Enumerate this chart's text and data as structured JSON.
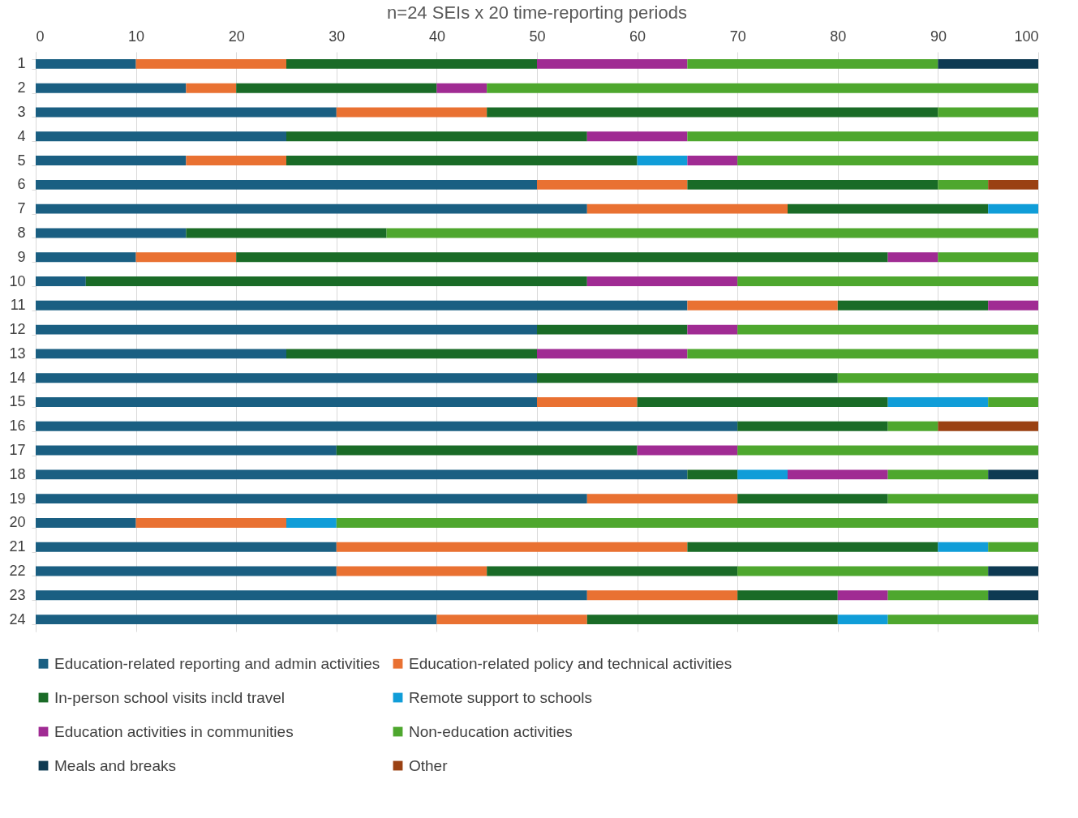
{
  "chart_data": {
    "type": "bar",
    "orientation": "horizontal",
    "stacked": true,
    "title": "n=24 SEIs x 20 time-reporting periods",
    "categories": [
      "1",
      "2",
      "3",
      "4",
      "5",
      "6",
      "7",
      "8",
      "9",
      "10",
      "11",
      "12",
      "13",
      "14",
      "15",
      "16",
      "17",
      "18",
      "19",
      "20",
      "21",
      "22",
      "23",
      "24"
    ],
    "series": [
      {
        "name": "Education-related reporting and admin activities",
        "color": "#1a5f82",
        "values": [
          10,
          15,
          30,
          25,
          15,
          50,
          55,
          15,
          10,
          5,
          65,
          50,
          25,
          50,
          50,
          70,
          30,
          65,
          55,
          10,
          30,
          30,
          55,
          40
        ]
      },
      {
        "name": "Education-related policy and technical activities",
        "color": "#e97132",
        "values": [
          15,
          5,
          15,
          0,
          10,
          15,
          20,
          0,
          10,
          0,
          15,
          0,
          0,
          0,
          10,
          0,
          0,
          0,
          15,
          15,
          35,
          15,
          15,
          15
        ]
      },
      {
        "name": "In-person school visits incld travel",
        "color": "#1a6b27",
        "values": [
          25,
          20,
          45,
          30,
          35,
          25,
          20,
          20,
          65,
          50,
          15,
          15,
          25,
          30,
          25,
          15,
          30,
          5,
          15,
          0,
          25,
          25,
          10,
          25
        ]
      },
      {
        "name": "Remote support to schools",
        "color": "#109dd8",
        "values": [
          0,
          0,
          0,
          0,
          5,
          0,
          5,
          0,
          0,
          0,
          0,
          0,
          0,
          0,
          10,
          0,
          0,
          5,
          0,
          5,
          5,
          0,
          0,
          5
        ]
      },
      {
        "name": "Education activities in communities",
        "color": "#a02b93",
        "values": [
          15,
          5,
          0,
          10,
          5,
          0,
          0,
          0,
          5,
          15,
          5,
          5,
          15,
          0,
          0,
          0,
          10,
          10,
          0,
          0,
          0,
          0,
          5,
          0
        ]
      },
      {
        "name": "Non-education activities",
        "color": "#4ea72e",
        "values": [
          25,
          55,
          10,
          35,
          30,
          5,
          0,
          65,
          10,
          30,
          0,
          30,
          35,
          20,
          5,
          5,
          30,
          10,
          15,
          70,
          5,
          25,
          10,
          15
        ]
      },
      {
        "name": "Meals and breaks",
        "color": "#0e3a52",
        "values": [
          10,
          0,
          0,
          0,
          0,
          0,
          0,
          0,
          0,
          0,
          0,
          0,
          0,
          0,
          0,
          0,
          0,
          5,
          0,
          0,
          0,
          5,
          5,
          0
        ]
      },
      {
        "name": "Other",
        "color": "#9a4112",
        "values": [
          0,
          0,
          0,
          0,
          0,
          5,
          0,
          0,
          0,
          0,
          0,
          0,
          0,
          0,
          0,
          10,
          0,
          0,
          0,
          0,
          0,
          0,
          0,
          0
        ]
      }
    ],
    "xlim": [
      0,
      100
    ],
    "xticks": [
      0,
      10,
      20,
      30,
      40,
      50,
      60,
      70,
      80,
      90,
      100
    ],
    "grid": "x",
    "legend": "bottom"
  }
}
